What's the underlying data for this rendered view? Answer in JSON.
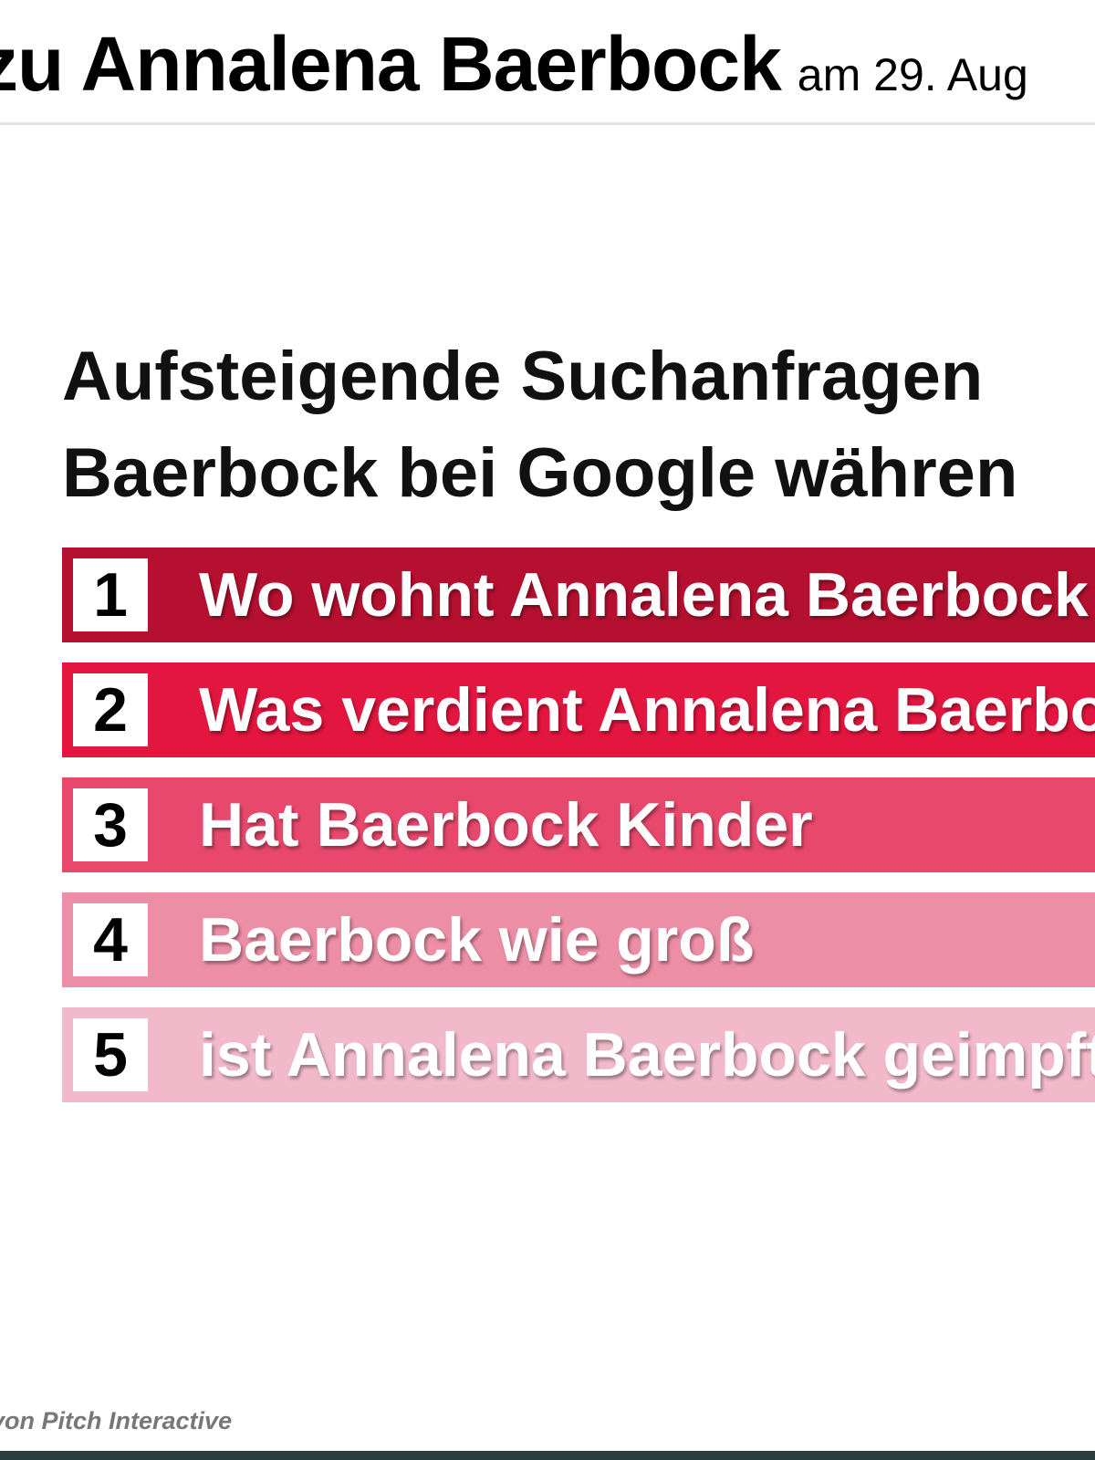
{
  "header": {
    "title": "zu Annalena Baerbock",
    "date": "am 29. Aug"
  },
  "heading": {
    "line1": "Aufsteigende Suchanfragen",
    "line2": "Baerbock bei Google währen"
  },
  "ranking": [
    {
      "rank": "1",
      "query": "Wo wohnt Annalena Baerbock",
      "color": "#b5102f"
    },
    {
      "rank": "2",
      "query": "Was verdient Annalena Baerbo",
      "color": "#e3163f"
    },
    {
      "rank": "3",
      "query": "Hat Baerbock Kinder",
      "color": "#e7486c"
    },
    {
      "rank": "4",
      "query": "Baerbock wie groß",
      "color": "#ec8ea5"
    },
    {
      "rank": "5",
      "query": "ist Annalena Baerbock geimpft",
      "color": "#f1b9c9"
    }
  ],
  "credit": "von Pitch Interactive",
  "colors": {
    "bottom_bar": "#2c3e40"
  }
}
